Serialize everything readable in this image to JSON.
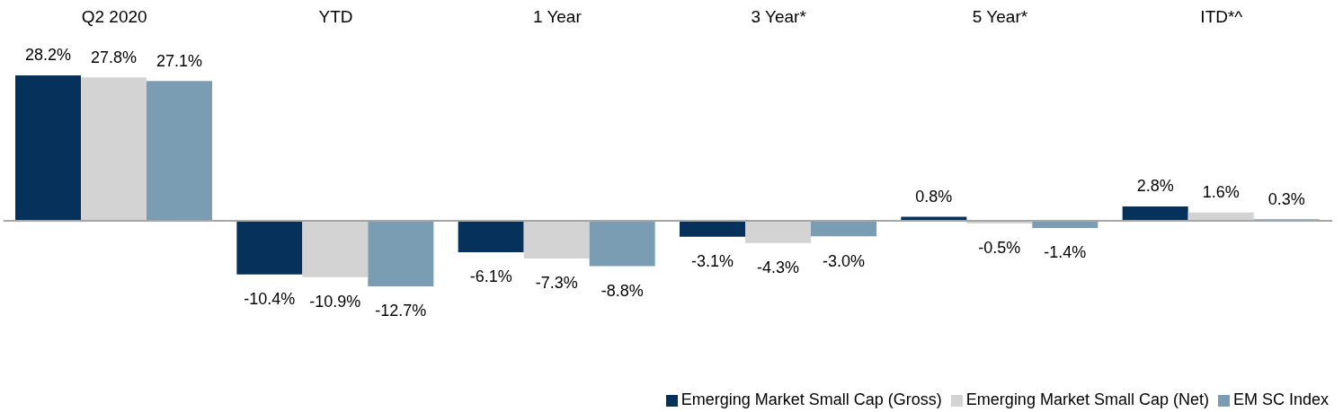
{
  "chart_data": {
    "type": "bar",
    "categories": [
      "Q2 2020",
      "YTD",
      "1 Year",
      "3 Year*",
      "5 Year*",
      "ITD*^"
    ],
    "series": [
      {
        "name": "Emerging Market Small Cap (Gross)",
        "color": "#05315a",
        "values": [
          28.2,
          -10.4,
          -6.1,
          -3.1,
          0.8,
          2.8
        ],
        "value_labels": [
          "28.2%",
          "-10.4%",
          "-6.1%",
          "-3.1%",
          "0.8%",
          "2.8%"
        ]
      },
      {
        "name": "Emerging Market Small Cap (Net)",
        "color": "#d3d3d3",
        "values": [
          27.8,
          -10.9,
          -7.3,
          -4.3,
          -0.5,
          1.6
        ],
        "value_labels": [
          "27.8%",
          "-10.9%",
          "-7.3%",
          "-4.3%",
          "-0.5%",
          "1.6%"
        ]
      },
      {
        "name": "EM SC Index",
        "color": "#7b9db3",
        "values": [
          27.1,
          -12.7,
          -8.8,
          -3.0,
          -1.4,
          0.3
        ],
        "value_labels": [
          "27.1%",
          "-12.7%",
          "-8.8%",
          "-3.0%",
          "-1.4%",
          "0.3%"
        ]
      }
    ],
    "tick_labels": "x",
    "legend": "bottom right"
  }
}
